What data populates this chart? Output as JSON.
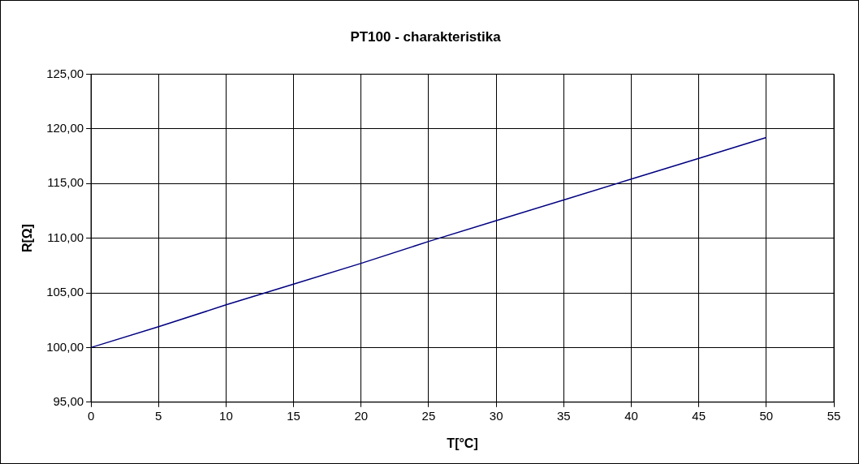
{
  "chart_data": {
    "type": "line",
    "title": "PT100 - charakteristika",
    "xlabel": "T[°C]",
    "ylabel": "R[Ω]",
    "x": [
      0,
      5,
      10,
      15,
      20,
      25,
      30,
      35,
      40,
      45,
      50
    ],
    "series": [
      {
        "color": "#000080",
        "values": [
          100,
          101.9,
          103.9,
          105.8,
          107.7,
          109.7,
          111.6,
          113.5,
          115.4,
          117.3,
          119.2
        ]
      }
    ],
    "xlim": [
      0,
      55
    ],
    "xticks": [
      0,
      5,
      10,
      15,
      20,
      25,
      30,
      35,
      40,
      45,
      50,
      55
    ],
    "ylim": [
      95,
      125
    ],
    "yticks": [
      {
        "value": 95,
        "label": "95,00"
      },
      {
        "value": 100,
        "label": "100,00"
      },
      {
        "value": 105,
        "label": "105,00"
      },
      {
        "value": 110,
        "label": "110,00"
      },
      {
        "value": 115,
        "label": "115,00"
      },
      {
        "value": 120,
        "label": "120,00"
      },
      {
        "value": 125,
        "label": "125,00"
      }
    ],
    "grid": true,
    "legend": false,
    "marker": "none",
    "line_style": "solid"
  }
}
